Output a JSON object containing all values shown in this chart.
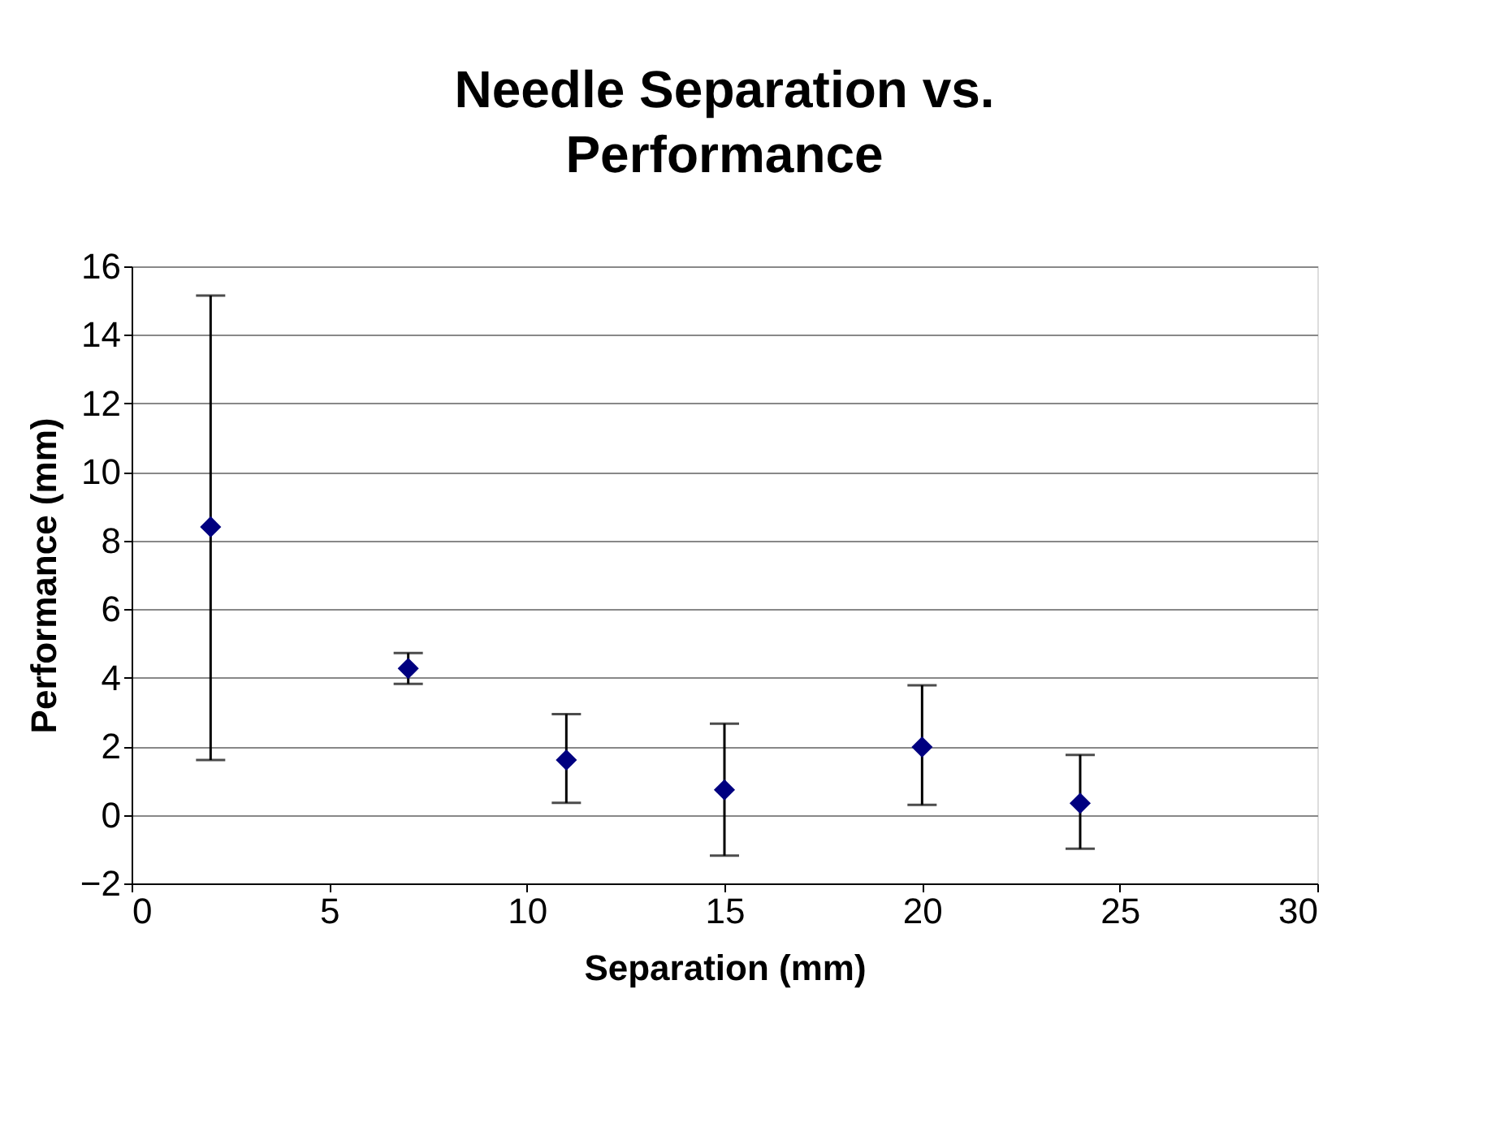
{
  "chart_data": {
    "type": "scatter",
    "title": "Needle Separation vs. Performance",
    "xlabel": "Separation (mm)",
    "ylabel": "Performance (mm)",
    "x": [
      2,
      7,
      11,
      15,
      20,
      24
    ],
    "series": [
      {
        "color": "#000080",
        "values": [
          8.4,
          4.27,
          1.6,
          0.73,
          1.98,
          0.34
        ],
        "errors": [
          [
            1.6,
            15.15
          ],
          [
            3.82,
            4.72
          ],
          [
            0.35,
            2.94
          ],
          [
            -1.19,
            2.66
          ],
          [
            0.29,
            3.78
          ],
          [
            -0.99,
            1.75
          ]
        ]
      }
    ],
    "xlim": [
      0,
      30
    ],
    "xticks": [
      0,
      5,
      10,
      15,
      20,
      25,
      30
    ],
    "ylim": [
      -2,
      16
    ],
    "yticks": [
      -2,
      0,
      2,
      4,
      6,
      8,
      10,
      12,
      14,
      16
    ],
    "grid": "y",
    "marker": "diamond"
  }
}
